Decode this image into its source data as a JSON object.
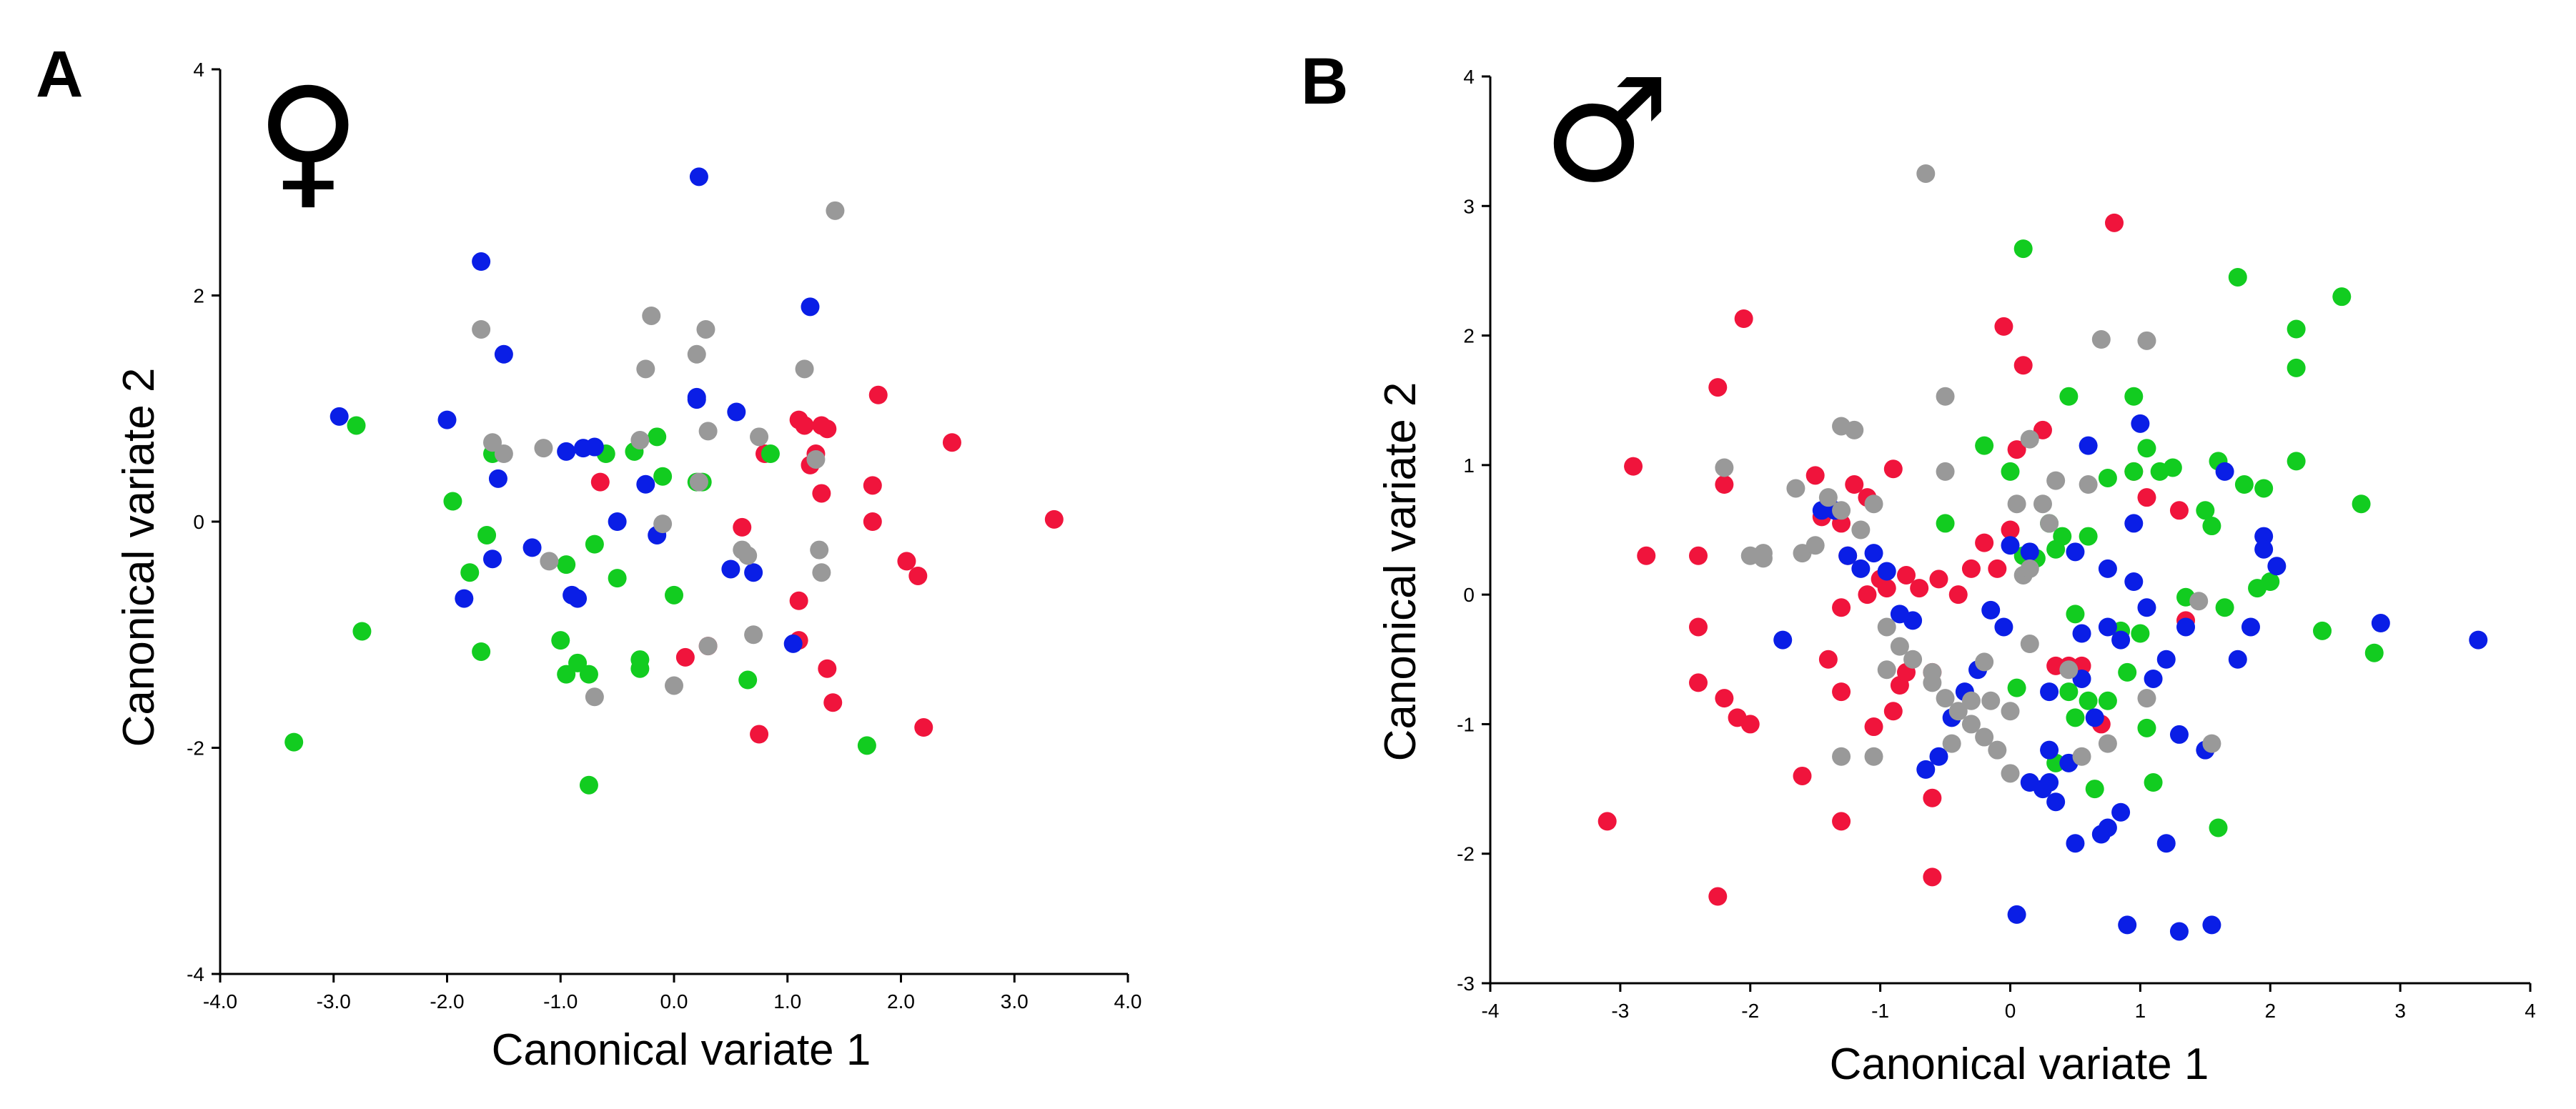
{
  "colors": {
    "red": "#f0143c",
    "green": "#12cc20",
    "blue": "#0a1ee6",
    "gray": "#999999"
  },
  "chart_data": [
    {
      "type": "scatter",
      "panel_label": "A",
      "symbol": "♀",
      "symbol_icon": "female-symbol-icon",
      "xlabel": "Canonical variate 1",
      "ylabel": "Canonical variate 2",
      "xlim": [
        -4,
        4
      ],
      "ylim": [
        -4,
        4
      ],
      "xticks": [
        -4,
        -3,
        -2,
        -1,
        0,
        1,
        2,
        3,
        4
      ],
      "xtick_labels": [
        "-4.0",
        "-3.0",
        "-2.0",
        "-1.0",
        "0.0",
        "1.0",
        "2.0",
        "3.0",
        "4.0"
      ],
      "yticks": [
        -4,
        -2,
        0,
        2,
        4
      ],
      "ytick_labels": [
        "-4",
        "-2",
        "0",
        "2",
        "4"
      ],
      "grid": false,
      "series": [
        {
          "name": "red",
          "color": "#f0143c",
          "x": [
            3.35,
            2.45,
            1.8,
            1.75,
            1.3,
            1.35,
            1.25,
            1.2,
            1.1,
            1.15,
            0.8,
            0.6,
            -0.65,
            1.75,
            2.05,
            2.15,
            0.3,
            0.1,
            1.1,
            1.1,
            1.35,
            1.4,
            1.3,
            0.75,
            2.2
          ],
          "y": [
            0.02,
            0.7,
            1.12,
            0.32,
            0.85,
            0.82,
            0.6,
            0.5,
            0.9,
            0.85,
            0.6,
            -0.05,
            0.35,
            0.0,
            -0.35,
            -0.48,
            -1.1,
            -1.2,
            -1.05,
            -0.7,
            -1.3,
            -1.6,
            0.25,
            -1.88,
            -1.82
          ]
        },
        {
          "name": "green",
          "color": "#12cc20",
          "x": [
            -3.35,
            -2.75,
            -2.8,
            -1.95,
            -1.8,
            -1.65,
            -1.6,
            -0.95,
            -0.7,
            -0.5,
            -0.6,
            -0.35,
            -0.15,
            0.25,
            0.2,
            -0.1,
            0.0,
            -0.95,
            -0.85,
            -0.75,
            -0.3,
            -0.3,
            0.65,
            1.7,
            -0.75,
            -1.0,
            0.85,
            -1.7
          ],
          "y": [
            -1.95,
            -0.97,
            0.85,
            0.18,
            -0.45,
            -0.12,
            0.6,
            -0.38,
            -0.2,
            -0.5,
            0.6,
            0.62,
            0.75,
            0.35,
            0.35,
            0.4,
            -0.65,
            -1.35,
            -1.25,
            -1.35,
            -1.22,
            -1.3,
            -1.4,
            -1.98,
            -2.33,
            -1.05,
            0.6,
            -1.15
          ]
        },
        {
          "name": "blue",
          "color": "#0a1ee6",
          "x": [
            0.22,
            -1.7,
            -1.5,
            -2.95,
            -2.0,
            -1.55,
            -1.6,
            -1.85,
            -1.25,
            -0.95,
            -0.85,
            -0.8,
            -0.9,
            -0.5,
            -0.15,
            -0.25,
            0.2,
            0.2,
            0.55,
            0.5,
            0.7,
            1.2,
            1.05,
            -0.7
          ],
          "y": [
            3.05,
            2.3,
            1.48,
            0.93,
            0.9,
            0.38,
            -0.33,
            -0.68,
            -0.23,
            0.62,
            -0.68,
            0.65,
            -0.65,
            0.0,
            -0.12,
            0.33,
            1.1,
            1.08,
            0.97,
            -0.42,
            -0.45,
            1.9,
            -1.08,
            0.66
          ]
        },
        {
          "name": "gray",
          "color": "#999999",
          "x": [
            1.42,
            -1.7,
            -0.2,
            0.28,
            0.2,
            -0.25,
            1.15,
            -1.6,
            -1.5,
            -1.15,
            -0.3,
            0.22,
            0.3,
            0.75,
            0.65,
            1.25,
            1.28,
            0.6,
            1.3,
            0.7,
            0.3,
            -0.1,
            -0.7,
            0.0,
            -1.1
          ],
          "y": [
            2.75,
            1.7,
            1.82,
            1.7,
            1.48,
            1.35,
            1.35,
            0.7,
            0.6,
            0.65,
            0.72,
            0.35,
            0.8,
            0.75,
            -0.3,
            0.55,
            -0.25,
            -0.25,
            -0.45,
            -1.0,
            -1.1,
            -0.02,
            -1.55,
            -1.45,
            -0.35
          ]
        }
      ]
    },
    {
      "type": "scatter",
      "panel_label": "B",
      "symbol": "♂",
      "symbol_icon": "male-symbol-icon",
      "xlabel": "Canonical variate 1",
      "ylabel": "Canonical variate 2",
      "xlim": [
        -4,
        4
      ],
      "ylim": [
        -3,
        4
      ],
      "xticks": [
        -4,
        -3,
        -2,
        -1,
        0,
        1,
        2,
        3,
        4
      ],
      "xtick_labels": [
        "-4",
        "-3",
        "-2",
        "-1",
        "0",
        "1",
        "2",
        "3",
        "4"
      ],
      "yticks": [
        -3,
        -2,
        -1,
        0,
        1,
        2,
        3,
        4
      ],
      "ytick_labels": [
        "-3",
        "-2",
        "-1",
        "0",
        "1",
        "2",
        "3",
        "4"
      ],
      "grid": false,
      "series": [
        {
          "name": "red",
          "color": "#f0143c",
          "x": [
            0.8,
            -0.05,
            -2.05,
            0.05,
            -2.25,
            -2.9,
            -2.2,
            -2.8,
            -2.4,
            -2.4,
            -2.4,
            -2.2,
            -2.1,
            -2.0,
            -3.1,
            -2.25,
            -1.6,
            -1.3,
            -0.6,
            -0.6,
            -1.3,
            -1.4,
            -1.5,
            -1.45,
            -1.2,
            -1.1,
            -1.3,
            -1.25,
            -1.1,
            -1.0,
            -0.95,
            -0.9,
            -0.8,
            -0.7,
            -0.55,
            -0.4,
            -0.3,
            -0.2,
            -0.1,
            0.0,
            0.1,
            0.25,
            0.35,
            0.45,
            0.55,
            0.7,
            0.95,
            1.05,
            1.3,
            1.35,
            -0.85,
            -0.9,
            -1.05,
            -1.3,
            -0.6,
            -0.8
          ],
          "y": [
            2.87,
            2.07,
            2.13,
            1.12,
            1.6,
            0.99,
            0.85,
            0.3,
            0.3,
            -0.25,
            -0.68,
            -0.8,
            -0.95,
            -1.0,
            -1.75,
            -2.33,
            -1.4,
            -1.75,
            -1.57,
            -2.18,
            -0.75,
            -0.5,
            0.92,
            0.6,
            0.85,
            0.75,
            0.55,
            0.3,
            0.0,
            0.12,
            0.05,
            0.97,
            0.15,
            0.05,
            0.12,
            0.0,
            0.2,
            0.4,
            0.2,
            0.5,
            1.77,
            1.27,
            -0.55,
            -0.55,
            -0.55,
            -1.0,
            0.95,
            0.75,
            0.65,
            -0.2,
            -0.7,
            -0.9,
            -1.02,
            -0.1,
            -0.6,
            -0.6
          ]
        },
        {
          "name": "green",
          "color": "#12cc20",
          "x": [
            0.1,
            1.75,
            2.55,
            2.2,
            2.2,
            2.2,
            2.7,
            0.45,
            0.95,
            1.05,
            1.25,
            1.5,
            1.6,
            1.8,
            1.95,
            2.0,
            1.9,
            1.65,
            1.55,
            1.15,
            1.35,
            0.95,
            0.75,
            0.85,
            0.5,
            0.6,
            0.4,
            0.3,
            0.1,
            0.2,
            0.0,
            0.35,
            0.45,
            0.6,
            0.75,
            0.9,
            1.0,
            1.05,
            1.1,
            2.4,
            2.8,
            1.6,
            0.5,
            0.65,
            0.35,
            -0.5,
            -0.2,
            0.05
          ],
          "y": [
            2.67,
            2.45,
            2.3,
            2.05,
            1.75,
            1.03,
            0.7,
            1.53,
            1.53,
            1.13,
            0.98,
            0.65,
            1.03,
            0.85,
            0.82,
            0.1,
            0.05,
            -0.1,
            0.53,
            0.95,
            -0.02,
            0.95,
            0.9,
            -0.28,
            -0.15,
            0.45,
            0.45,
            0.55,
            0.3,
            0.28,
            0.95,
            0.35,
            -0.75,
            -0.82,
            -0.82,
            -0.6,
            -0.3,
            -1.03,
            -1.45,
            -0.28,
            -0.45,
            -1.8,
            -0.95,
            -1.5,
            -1.3,
            0.55,
            1.15,
            -0.72
          ]
        },
        {
          "name": "blue",
          "color": "#0a1ee6",
          "x": [
            3.6,
            2.85,
            2.05,
            1.95,
            1.95,
            1.85,
            1.75,
            1.65,
            1.5,
            1.35,
            1.3,
            1.1,
            1.05,
            0.95,
            0.85,
            0.75,
            0.65,
            0.55,
            0.45,
            0.35,
            0.25,
            0.15,
            0.05,
            -0.05,
            -0.15,
            -0.25,
            -0.35,
            -0.45,
            -0.55,
            -0.65,
            -0.75,
            -0.85,
            -0.95,
            -1.05,
            -1.15,
            -1.25,
            -1.35,
            -1.45,
            -1.75,
            1.55,
            1.3,
            1.2,
            1.2,
            0.85,
            0.9,
            0.75,
            0.7,
            0.55,
            0.5,
            0.3,
            0.3,
            0.15,
            0.0,
            0.6,
            0.75,
            0.95,
            1.0,
            0.5,
            0.3
          ],
          "y": [
            -0.35,
            -0.22,
            0.22,
            0.45,
            0.35,
            -0.25,
            -0.5,
            0.95,
            -1.2,
            -0.25,
            -1.08,
            -0.65,
            -0.1,
            0.55,
            -0.35,
            -0.25,
            -0.95,
            -0.3,
            -1.3,
            -1.6,
            -1.5,
            -1.45,
            -2.47,
            -0.25,
            -0.12,
            -0.58,
            -0.75,
            -0.95,
            -1.25,
            -1.35,
            -0.2,
            -0.15,
            0.18,
            0.32,
            0.2,
            0.3,
            0.65,
            0.65,
            -0.35,
            -2.55,
            -2.6,
            -1.92,
            -0.5,
            -1.68,
            -2.55,
            -1.8,
            -1.85,
            -0.65,
            -1.92,
            -1.2,
            -1.45,
            0.33,
            0.38,
            1.15,
            0.2,
            0.1,
            1.32,
            0.33,
            -0.75
          ]
        },
        {
          "name": "gray",
          "color": "#999999",
          "x": [
            -0.65,
            0.7,
            1.05,
            -0.5,
            -0.5,
            0.15,
            0.35,
            -1.3,
            -1.2,
            -2.2,
            -1.9,
            -1.6,
            -1.5,
            -1.4,
            -1.3,
            -1.15,
            -1.05,
            -0.95,
            -0.85,
            -0.75,
            -0.6,
            -0.5,
            -0.4,
            -0.3,
            -0.2,
            -0.1,
            0.0,
            0.05,
            0.1,
            0.15,
            0.25,
            0.3,
            -2.0,
            -1.9,
            -1.65,
            -1.3,
            -1.05,
            -0.95,
            -0.6,
            -0.45,
            -0.3,
            -0.15,
            0.0,
            0.55,
            0.75,
            1.05,
            1.45,
            1.55,
            0.45,
            -0.2,
            0.15,
            0.6
          ],
          "y": [
            3.25,
            1.97,
            1.96,
            1.53,
            0.95,
            1.2,
            0.88,
            1.3,
            1.27,
            0.98,
            0.32,
            0.32,
            0.38,
            0.75,
            0.65,
            0.5,
            0.7,
            -0.25,
            -0.4,
            -0.5,
            -0.6,
            -0.8,
            -0.9,
            -1.0,
            -1.1,
            -1.2,
            -0.9,
            0.7,
            0.15,
            0.2,
            0.7,
            0.55,
            0.3,
            0.28,
            0.82,
            -1.25,
            -1.25,
            -0.58,
            -0.68,
            -1.15,
            -0.82,
            -0.82,
            -1.38,
            -1.25,
            -1.15,
            -0.8,
            -0.05,
            -1.15,
            -0.58,
            -0.52,
            -0.38,
            0.85
          ]
        }
      ]
    }
  ]
}
